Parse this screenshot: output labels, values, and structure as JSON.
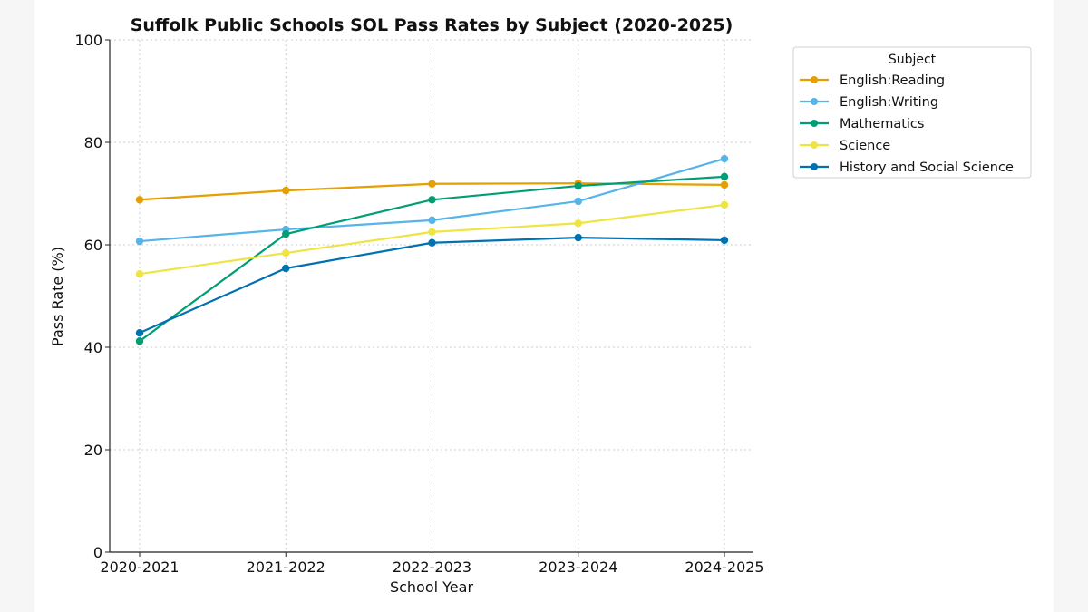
{
  "chart_data": {
    "type": "line",
    "title": "Suffolk Public Schools SOL Pass Rates by Subject (2020-2025)",
    "xlabel": "School Year",
    "ylabel": "Pass Rate (%)",
    "ylim": [
      0,
      100
    ],
    "yticks": [
      0,
      20,
      40,
      60,
      80,
      100
    ],
    "grid": true,
    "legend": {
      "title": "Subject",
      "placement": "outside-top-right"
    },
    "categories": [
      "2020-2021",
      "2021-2022",
      "2022-2023",
      "2023-2024",
      "2024-2025"
    ],
    "series": [
      {
        "name": "English:Reading",
        "color": "#E69F00",
        "values": [
          68.8,
          70.6,
          71.9,
          72.0,
          71.7
        ]
      },
      {
        "name": "English:Writing",
        "color": "#56B4E9",
        "values": [
          60.7,
          63.0,
          64.8,
          68.5,
          76.8
        ]
      },
      {
        "name": "Mathematics",
        "color": "#009E73",
        "values": [
          41.2,
          62.1,
          68.8,
          71.5,
          73.3
        ]
      },
      {
        "name": "Science",
        "color": "#F0E442",
        "values": [
          54.3,
          58.4,
          62.5,
          64.2,
          67.8
        ]
      },
      {
        "name": "History and Social Science",
        "color": "#0072B2",
        "values": [
          42.8,
          55.4,
          60.4,
          61.4,
          60.9
        ]
      }
    ]
  }
}
